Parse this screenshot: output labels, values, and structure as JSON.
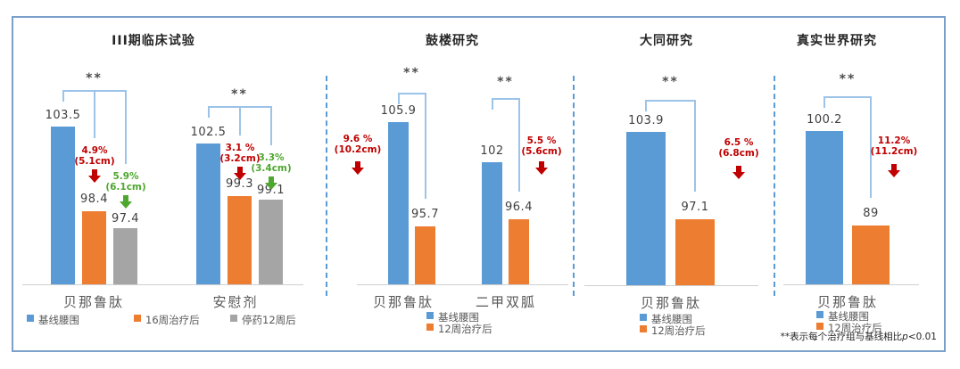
{
  "footnote": {
    "prefix": "**表示每个治疗组与基线相比",
    "p": "p",
    "suffix": "<0.01"
  },
  "colors": {
    "blue": "#5B9BD5",
    "orange": "#ED7D31",
    "gray": "#A5A5A5",
    "red": "#C00000",
    "green": "#4EA72E",
    "bracket": "#9CC3E8",
    "separator": "#5B9BD5",
    "axis": "#CFCFCF"
  },
  "chart_data": [
    {
      "type": "bar",
      "title": "III期临床试验",
      "ylim": [
        94,
        104
      ],
      "legend": {
        "layout": "row",
        "items": [
          {
            "label": "基线腰围",
            "color": "blue"
          },
          {
            "label": "16周治疗后",
            "color": "orange"
          },
          {
            "label": "停药12周后",
            "color": "gray"
          }
        ]
      },
      "groups": [
        {
          "category": "贝那鲁肽",
          "significance": "**",
          "bars": [
            {
              "series": "基线腰围",
              "value": 103.5,
              "label": "103.5",
              "color": "blue"
            },
            {
              "series": "16周治疗后",
              "value": 98.4,
              "label": "98.4",
              "color": "orange"
            },
            {
              "series": "停药12周后",
              "value": 97.4,
              "label": "97.4",
              "color": "gray"
            }
          ],
          "annotations": [
            {
              "lines": [
                "4.9%",
                "(5.1cm)"
              ],
              "color": "red",
              "position": "over-bar-1"
            },
            {
              "lines": [
                "5.9%",
                "(6.1cm)"
              ],
              "color": "green",
              "position": "over-bar-2"
            }
          ]
        },
        {
          "category": "安慰剂",
          "significance": "**",
          "bars": [
            {
              "series": "基线腰围",
              "value": 102.5,
              "label": "102.5",
              "color": "blue"
            },
            {
              "series": "16周治疗后",
              "value": 99.3,
              "label": "99.3",
              "color": "orange"
            },
            {
              "series": "停药12周后",
              "value": 99.1,
              "label": "99.1",
              "color": "gray"
            }
          ],
          "annotations": [
            {
              "lines": [
                "3.1 %",
                "(3.2cm)"
              ],
              "color": "red",
              "position": "over-bar-1"
            },
            {
              "lines": [
                "3.3%",
                "(3.4cm)"
              ],
              "color": "green",
              "position": "over-bar-2"
            }
          ]
        }
      ]
    },
    {
      "type": "bar",
      "title": "鼓楼研究",
      "ylim": [
        90,
        106.5
      ],
      "legend": {
        "layout": "column",
        "items": [
          {
            "label": "基线腰围",
            "color": "blue"
          },
          {
            "label": "12周治疗后",
            "color": "orange"
          }
        ]
      },
      "groups": [
        {
          "category": "贝那鲁肽",
          "significance": "**",
          "bars": [
            {
              "series": "基线腰围",
              "value": 105.9,
              "label": "105.9",
              "color": "blue"
            },
            {
              "series": "12周治疗后",
              "value": 95.7,
              "label": "95.7",
              "color": "orange"
            }
          ],
          "annotations": [
            {
              "lines": [
                "9.6 %",
                "(10.2cm)"
              ],
              "color": "red",
              "position": "left"
            }
          ]
        },
        {
          "category": "二甲双胍",
          "significance": "**",
          "bars": [
            {
              "series": "基线腰围",
              "value": 102,
              "label": "102",
              "color": "blue"
            },
            {
              "series": "12周治疗后",
              "value": 96.4,
              "label": "96.4",
              "color": "orange"
            }
          ],
          "annotations": [
            {
              "lines": [
                "5.5 %",
                "(5.6cm)"
              ],
              "color": "red",
              "position": "right"
            }
          ]
        }
      ]
    },
    {
      "type": "bar",
      "title": "大同研究",
      "ylim": [
        92,
        104.5
      ],
      "legend": {
        "layout": "column",
        "items": [
          {
            "label": "基线腰围",
            "color": "blue"
          },
          {
            "label": "12周治疗后",
            "color": "orange"
          }
        ]
      },
      "groups": [
        {
          "category": "贝那鲁肽",
          "significance": "**",
          "bars": [
            {
              "series": "基线腰围",
              "value": 103.9,
              "label": "103.9",
              "color": "blue"
            },
            {
              "series": "12周治疗后",
              "value": 97.1,
              "label": "97.1",
              "color": "orange"
            }
          ],
          "annotations": [
            {
              "lines": [
                "6.5 %",
                "(6.8cm)"
              ],
              "color": "red",
              "position": "right"
            }
          ]
        }
      ]
    },
    {
      "type": "bar",
      "title": "真实世界研究",
      "ylim": [
        82,
        101
      ],
      "legend": {
        "layout": "column",
        "items": [
          {
            "label": "基线腰围",
            "color": "blue"
          },
          {
            "label": "12周治疗后",
            "color": "orange"
          }
        ]
      },
      "groups": [
        {
          "category": "贝那鲁肽",
          "significance": "**",
          "bars": [
            {
              "series": "基线腰围",
              "value": 100.2,
              "label": "100.2",
              "color": "blue"
            },
            {
              "series": "12周治疗后",
              "value": 89,
              "label": "89",
              "color": "orange"
            }
          ],
          "annotations": [
            {
              "lines": [
                "11.2%",
                "(11.2cm)"
              ],
              "color": "red",
              "position": "right"
            }
          ]
        }
      ]
    }
  ]
}
